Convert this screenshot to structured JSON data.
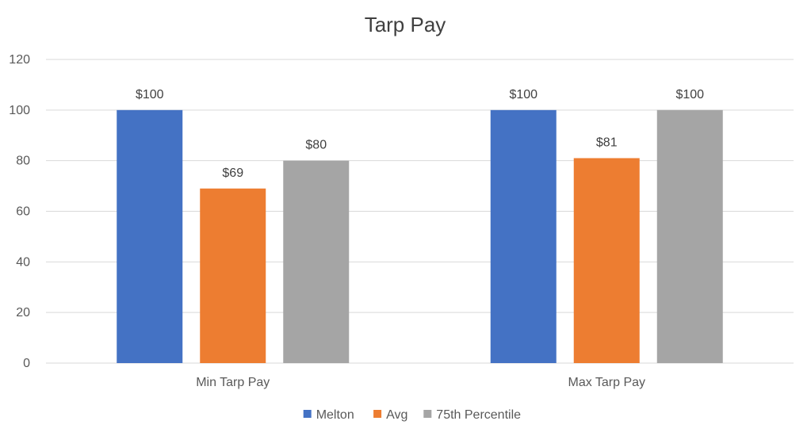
{
  "chart_data": {
    "type": "bar",
    "title": "Tarp Pay",
    "xlabel": "",
    "ylabel": "",
    "categories": [
      "Min Tarp Pay",
      "Max Tarp Pay"
    ],
    "series": [
      {
        "name": "Melton",
        "color": "#4472C4",
        "values": [
          100,
          100
        ],
        "labels": [
          "$100",
          "$100"
        ]
      },
      {
        "name": "Avg",
        "color": "#ED7D31",
        "values": [
          69,
          81
        ],
        "labels": [
          "$69",
          "$81"
        ]
      },
      {
        "name": "75th Percentile",
        "color": "#A5A5A5",
        "values": [
          80,
          100
        ],
        "labels": [
          "$80",
          "$100"
        ]
      }
    ],
    "ylim": [
      0,
      120
    ],
    "yticks": [
      0,
      20,
      40,
      60,
      80,
      100,
      120
    ],
    "ytick_labels": [
      "0",
      "20",
      "40",
      "60",
      "80",
      "100",
      "120"
    ],
    "grid": true,
    "grid_color": "#D9D9D9",
    "legend_position": "bottom"
  }
}
